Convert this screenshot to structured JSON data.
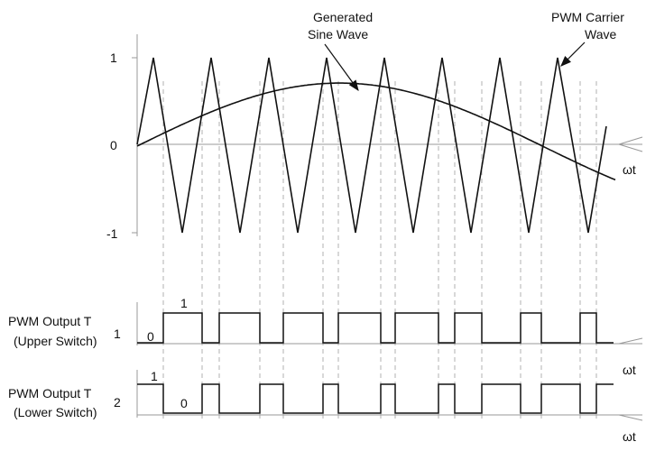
{
  "labels": {
    "generated_line1": "Generated",
    "generated_line2": "Sine Wave",
    "carrier_line1": "PWM Carrier",
    "carrier_line2": "Wave",
    "tick_pos1": "1",
    "tick_zero": "0",
    "tick_neg1": "-1",
    "omega_t_top": "ωt",
    "omega_t_mid": "ωt",
    "omega_t_bot": "ωt",
    "out1_line1": "PWM Output T",
    "out1_sub": "1",
    "out1_line2": "(Upper Switch)",
    "out2_line1": "PWM Output T",
    "out2_sub": "2",
    "out2_line2": "(Lower Switch)",
    "upper_high": "1",
    "upper_low": "0",
    "lower_high": "1",
    "lower_low": "0"
  },
  "colors": {
    "stroke": "#111111",
    "grid": "#aaaaaa",
    "axis": "#999999"
  }
}
